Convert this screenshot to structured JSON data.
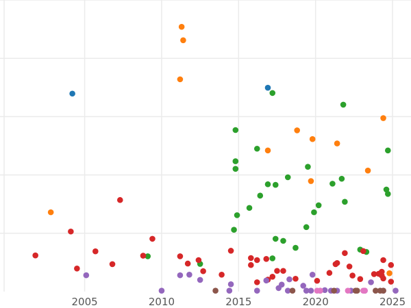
{
  "chart_data": {
    "type": "scatter",
    "title": "",
    "xlabel": "",
    "ylabel": "",
    "xlim": [
      1999.5,
      2026.2
    ],
    "ylim": [
      0,
      1.0
    ],
    "xticks": [
      2005,
      2010,
      2015,
      2020,
      2025
    ],
    "xtick_labels": [
      "2005",
      "2010",
      "2015",
      "2020",
      "2025"
    ],
    "yticks": [
      0.2,
      0.4,
      0.6,
      0.8,
      1.0
    ],
    "grid": true,
    "legend": "none",
    "colors": {
      "blue": "#1f77b4",
      "orange": "#ff7f0e",
      "green": "#2ca02c",
      "red": "#d62728",
      "purple": "#9467bd",
      "brown": "#8c564b",
      "pink": "#e377c2"
    },
    "series": [
      {
        "color_key": "blue",
        "points": [
          [
            2004.2,
            0.679
          ],
          [
            2016.9,
            0.699
          ]
        ]
      },
      {
        "color_key": "orange",
        "points": [
          [
            2002.8,
            0.272
          ],
          [
            2011.3,
            0.908
          ],
          [
            2011.4,
            0.862
          ],
          [
            2011.2,
            0.728
          ],
          [
            2016.9,
            0.484
          ],
          [
            2018.8,
            0.553
          ],
          [
            2019.8,
            0.523
          ],
          [
            2019.7,
            0.379
          ],
          [
            2021.4,
            0.508
          ],
          [
            2023.4,
            0.415
          ],
          [
            2024.4,
            0.595
          ],
          [
            2024.8,
            0.063
          ]
        ]
      },
      {
        "color_key": "green",
        "points": [
          [
            2009.1,
            0.121
          ],
          [
            2012.5,
            0.095
          ],
          [
            2014.7,
            0.212
          ],
          [
            2014.9,
            0.262
          ],
          [
            2014.8,
            0.554
          ],
          [
            2014.8,
            0.447
          ],
          [
            2014.8,
            0.421
          ],
          [
            2015.7,
            0.287
          ],
          [
            2016.2,
            0.49
          ],
          [
            2016.4,
            0.329
          ],
          [
            2016.9,
            0.368
          ],
          [
            2017.4,
            0.366
          ],
          [
            2017.2,
            0.681
          ],
          [
            2017.2,
            0.114
          ],
          [
            2017.4,
            0.181
          ],
          [
            2017.9,
            0.174
          ],
          [
            2018.2,
            0.392
          ],
          [
            2018.7,
            0.15
          ],
          [
            2019.4,
            0.221
          ],
          [
            2019.5,
            0.428
          ],
          [
            2019.9,
            0.272
          ],
          [
            2020.2,
            0.296
          ],
          [
            2021.1,
            0.37
          ],
          [
            2021.7,
            0.387
          ],
          [
            2021.8,
            0.641
          ],
          [
            2021.9,
            0.308
          ],
          [
            2022.9,
            0.144
          ],
          [
            2023.3,
            0.136
          ],
          [
            2024.6,
            0.35
          ],
          [
            2024.7,
            0.484
          ],
          [
            2024.7,
            0.335
          ]
        ]
      },
      {
        "color_key": "red",
        "points": [
          [
            2001.8,
            0.124
          ],
          [
            2004.1,
            0.206
          ],
          [
            2004.5,
            0.079
          ],
          [
            2005.7,
            0.138
          ],
          [
            2006.8,
            0.094
          ],
          [
            2007.3,
            0.314
          ],
          [
            2008.8,
            0.123
          ],
          [
            2009.4,
            0.181
          ],
          [
            2011.2,
            0.121
          ],
          [
            2011.7,
            0.096
          ],
          [
            2012.4,
            0.108
          ],
          [
            2012.7,
            0.07
          ],
          [
            2013.9,
            0.058
          ],
          [
            2014.5,
            0.14
          ],
          [
            2015.8,
            0.115
          ],
          [
            2015.8,
            0.091
          ],
          [
            2016.2,
            0.032
          ],
          [
            2016.2,
            0.108
          ],
          [
            2016.8,
            0.112
          ],
          [
            2016.9,
            0.041
          ],
          [
            2017.2,
            0.051
          ],
          [
            2017.5,
            0.071
          ],
          [
            2017.9,
            0.071
          ],
          [
            2018.7,
            0.044
          ],
          [
            2020.1,
            0.037
          ],
          [
            2020.9,
            0.064
          ],
          [
            2021.3,
            0.094
          ],
          [
            2021.4,
            0.098
          ],
          [
            2021.9,
            0.132
          ],
          [
            2022.2,
            0.086
          ],
          [
            2022.4,
            0.055
          ],
          [
            2022.9,
            0.043
          ],
          [
            2023.1,
            0.139
          ],
          [
            2023.8,
            0.06
          ],
          [
            2024.1,
            0.061
          ],
          [
            2024.3,
            0.055
          ],
          [
            2024.3,
            0.068
          ],
          [
            2024.4,
            0.108
          ],
          [
            2024.4,
            0.045
          ],
          [
            2024.9,
            0.091
          ],
          [
            2024.9,
            0.034
          ]
        ]
      },
      {
        "color_key": "purple",
        "points": [
          [
            2005.1,
            0.056
          ],
          [
            2010.0,
            0.003
          ],
          [
            2011.2,
            0.056
          ],
          [
            2011.8,
            0.058
          ],
          [
            2012.5,
            0.04
          ],
          [
            2014.5,
            0.025
          ],
          [
            2014.4,
            0.003
          ],
          [
            2016.2,
            0.003
          ],
          [
            2016.8,
            0.038
          ],
          [
            2017.6,
            0.012
          ],
          [
            2017.8,
            0.024
          ],
          [
            2018.2,
            0.003
          ],
          [
            2018.3,
            0.042
          ],
          [
            2019.2,
            0.02
          ],
          [
            2019.4,
            0.003
          ],
          [
            2019.8,
            0.058
          ],
          [
            2019.7,
            0.003
          ],
          [
            2020.3,
            0.003
          ],
          [
            2020.6,
            0.005
          ],
          [
            2021.0,
            0.003
          ],
          [
            2021.4,
            0.003
          ],
          [
            2022.3,
            0.003
          ],
          [
            2023.2,
            0.003
          ],
          [
            2023.6,
            0.032
          ],
          [
            2024.4,
            0.003
          ],
          [
            2025.2,
            0.003
          ]
        ]
      },
      {
        "color_key": "brown",
        "points": [
          [
            2013.5,
            0.003
          ],
          [
            2018.5,
            0.003
          ],
          [
            2021.2,
            0.003
          ],
          [
            2022.6,
            0.003
          ],
          [
            2022.7,
            0.003
          ],
          [
            2023.9,
            0.003
          ],
          [
            2024.2,
            0.003
          ],
          [
            2024.4,
            0.003
          ]
        ]
      },
      {
        "color_key": "pink",
        "points": [
          [
            2020.1,
            0.003
          ],
          [
            2020.3,
            0.003
          ],
          [
            2022.1,
            0.003
          ],
          [
            2023.1,
            0.003
          ],
          [
            2023.2,
            0.003
          ]
        ]
      }
    ]
  }
}
